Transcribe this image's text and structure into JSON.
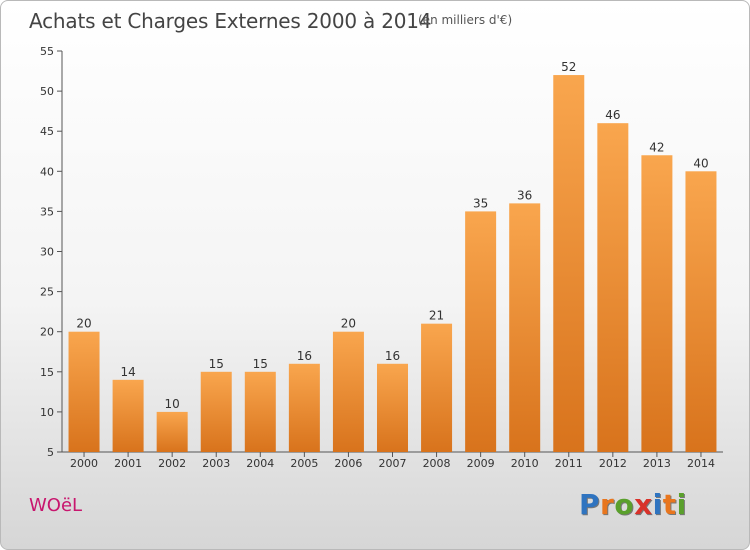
{
  "header": {
    "title": "Achats et Charges Externes 2000 à 2014",
    "subtitle": "(en milliers d'€)"
  },
  "footer": {
    "commune": "WOëL",
    "brand": "Proxiti",
    "brand_letters": [
      "P",
      "r",
      "o",
      "x",
      "i",
      "t",
      "i"
    ],
    "brand_colors": [
      "#2f74c0",
      "#e8761e",
      "#5aa02c",
      "#d9322a",
      "#2f74c0",
      "#e8761e",
      "#5aa02c"
    ]
  },
  "chart_data": {
    "type": "bar",
    "title": "Achats et Charges Externes 2000 à 2014",
    "subtitle": "(en milliers d'€)",
    "categories": [
      "2000",
      "2001",
      "2002",
      "2003",
      "2004",
      "2005",
      "2006",
      "2007",
      "2008",
      "2009",
      "2010",
      "2011",
      "2012",
      "2013",
      "2014"
    ],
    "values": [
      20,
      14,
      10,
      15,
      15,
      16,
      20,
      16,
      21,
      35,
      36,
      52,
      46,
      42,
      40
    ],
    "ylim": [
      5,
      55
    ],
    "yticks": [
      5,
      10,
      15,
      20,
      25,
      30,
      35,
      40,
      45,
      50,
      55
    ],
    "grid": false,
    "bar_color_light": "#f9a64e",
    "bar_color_dark": "#d8731c"
  }
}
